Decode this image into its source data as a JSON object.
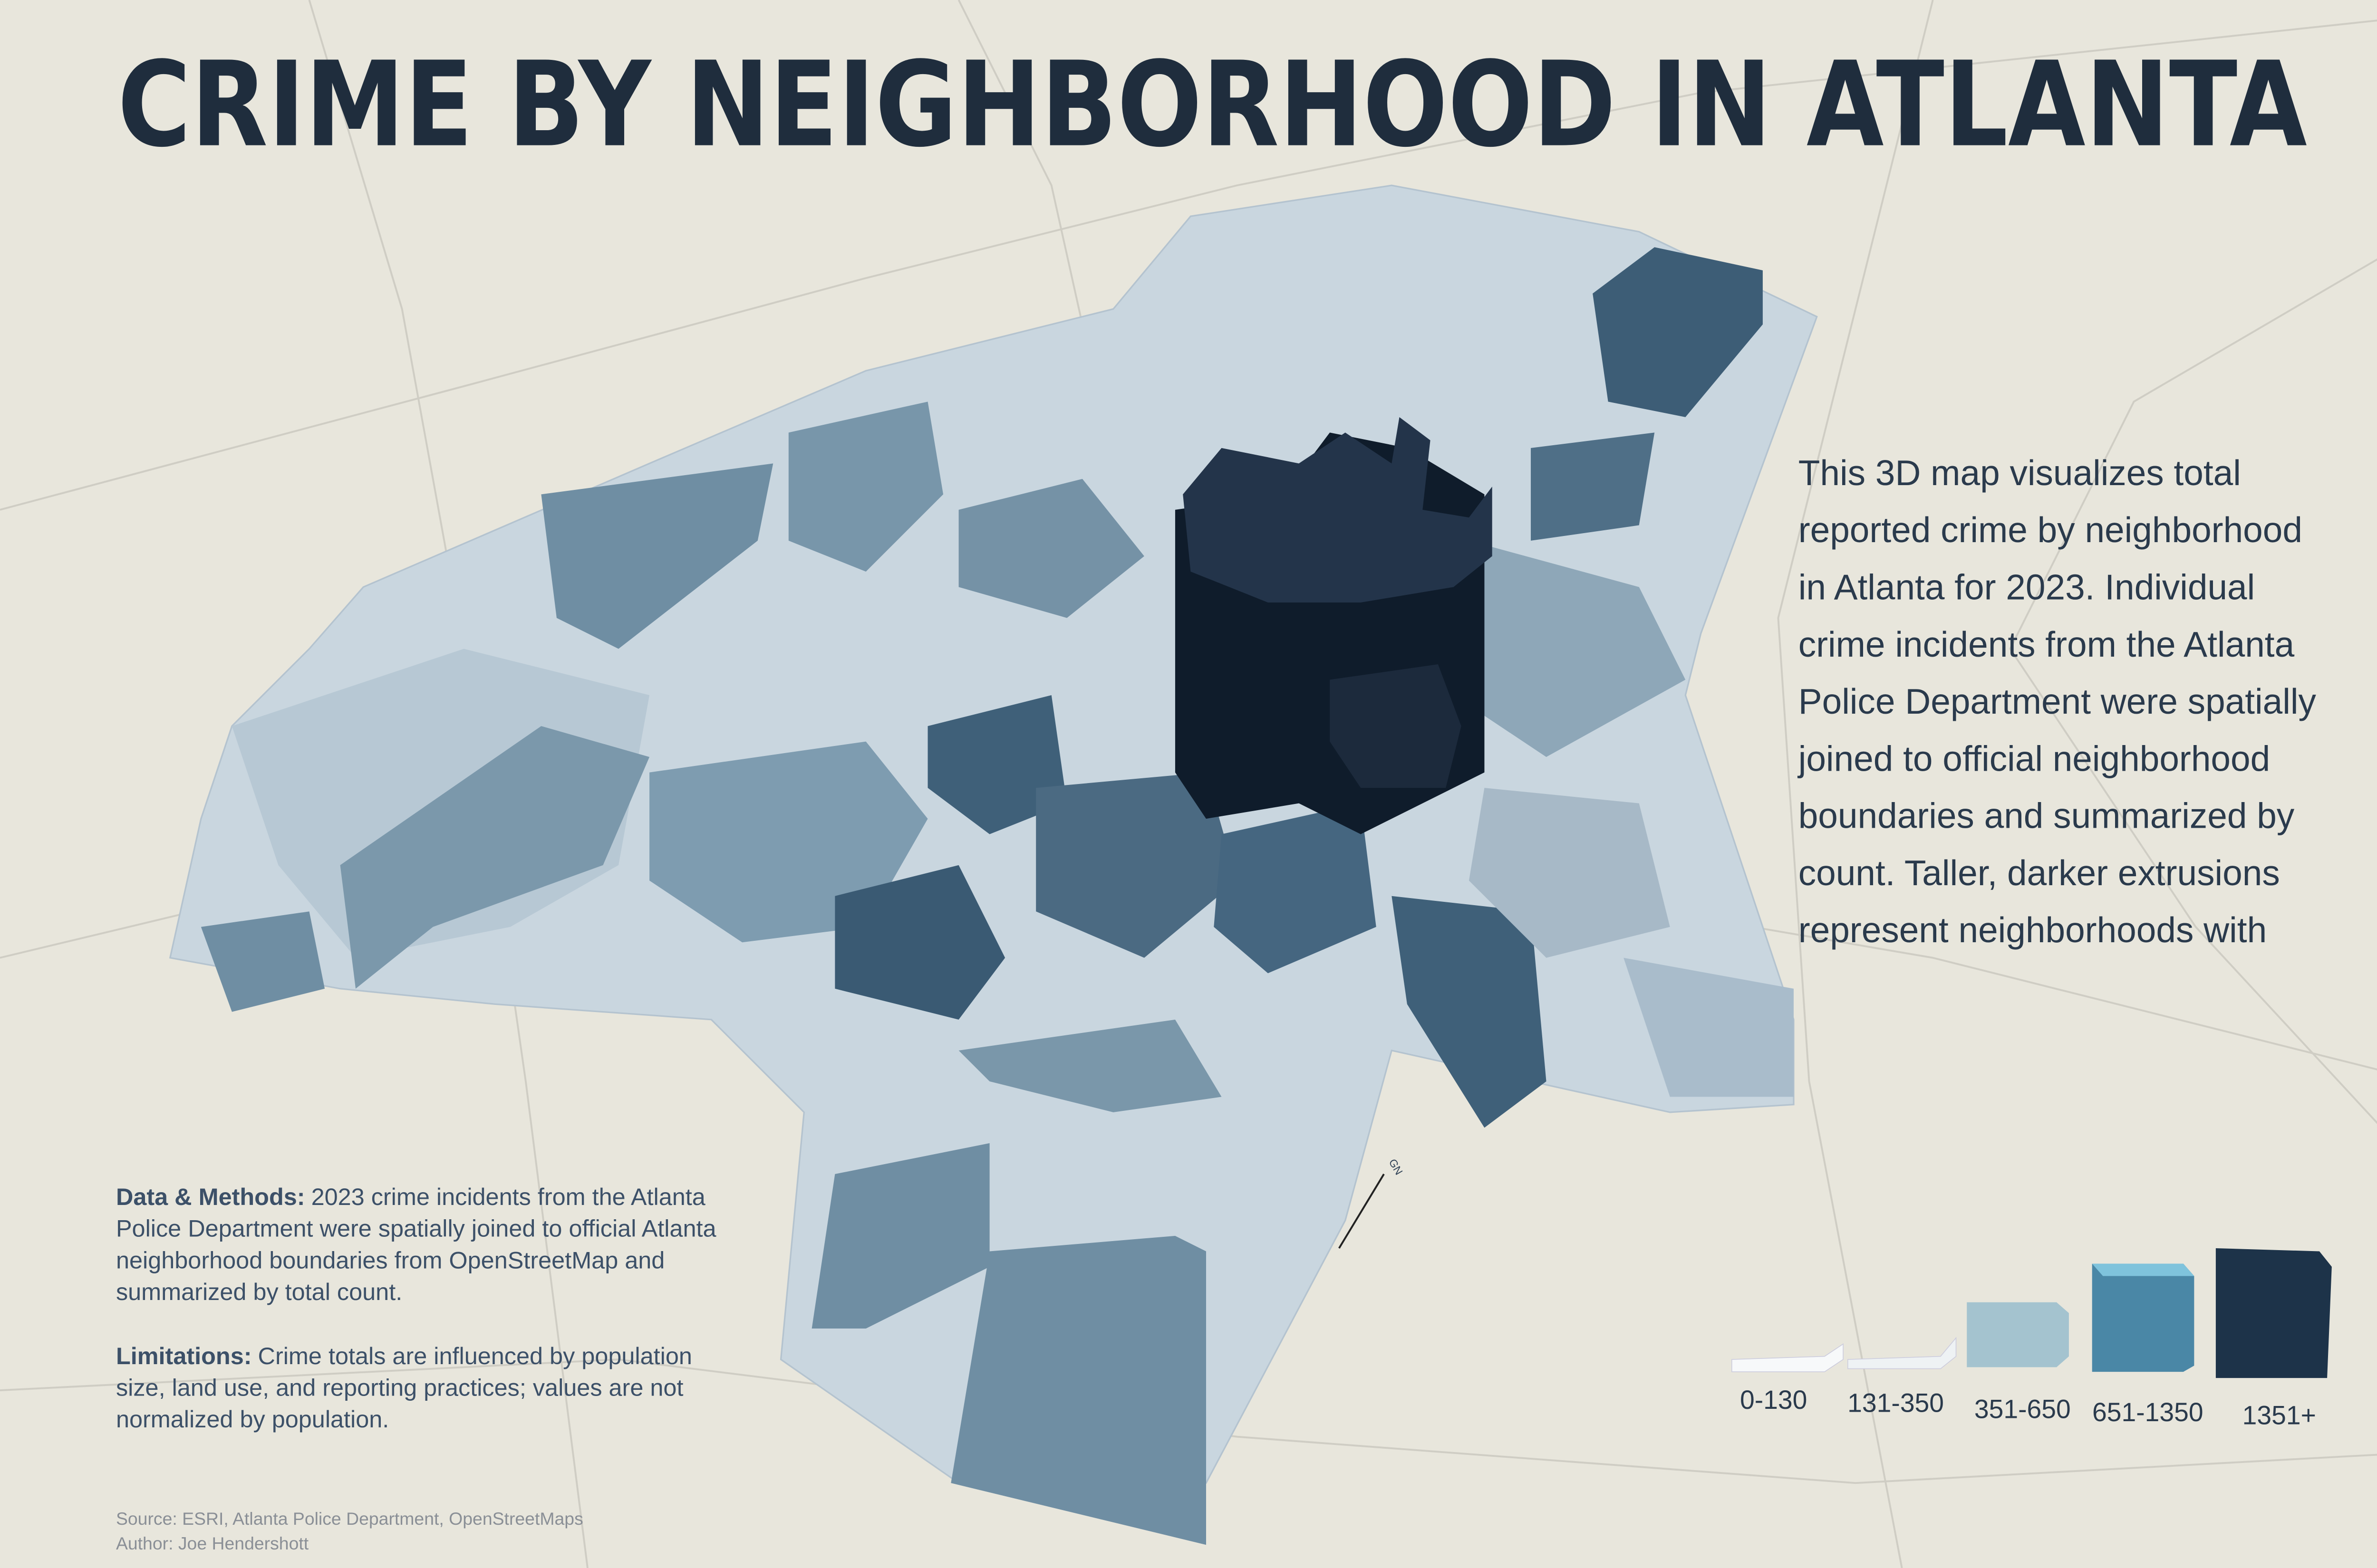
{
  "title": "CRIME BY NEIGHBORHOOD IN ATLANTA",
  "description": [
    "This 3D map visualizes total",
    "reported crime by neighborhood",
    "in Atlanta for 2023. Individual",
    "crime incidents from the Atlanta",
    "Police Department were spatially",
    "joined to official neighborhood",
    "boundaries and summarized by",
    "count. Taller, darker extrusions",
    "represent neighborhoods with"
  ],
  "data_methods": {
    "label": "Data & Methods:",
    "lines": [
      "2023 crime incidents from the Atlanta",
      "Police Department were spatially joined to official Atlanta",
      "neighborhood boundaries from OpenStreetMap and",
      "summarized by total count."
    ]
  },
  "limitations": {
    "label": "Limitations:",
    "lines": [
      "Crime totals are influenced by population",
      "size, land use, and reporting practices; values are not",
      "normalized by population."
    ]
  },
  "north_arrow": "GN",
  "legend": [
    "0-130",
    "131-350",
    "351-650",
    "651-1350",
    "1351+"
  ],
  "source": "Source: ESRI, Atlanta Police Department, OpenStreetMaps",
  "author": "Author: Joe Hendershott"
}
